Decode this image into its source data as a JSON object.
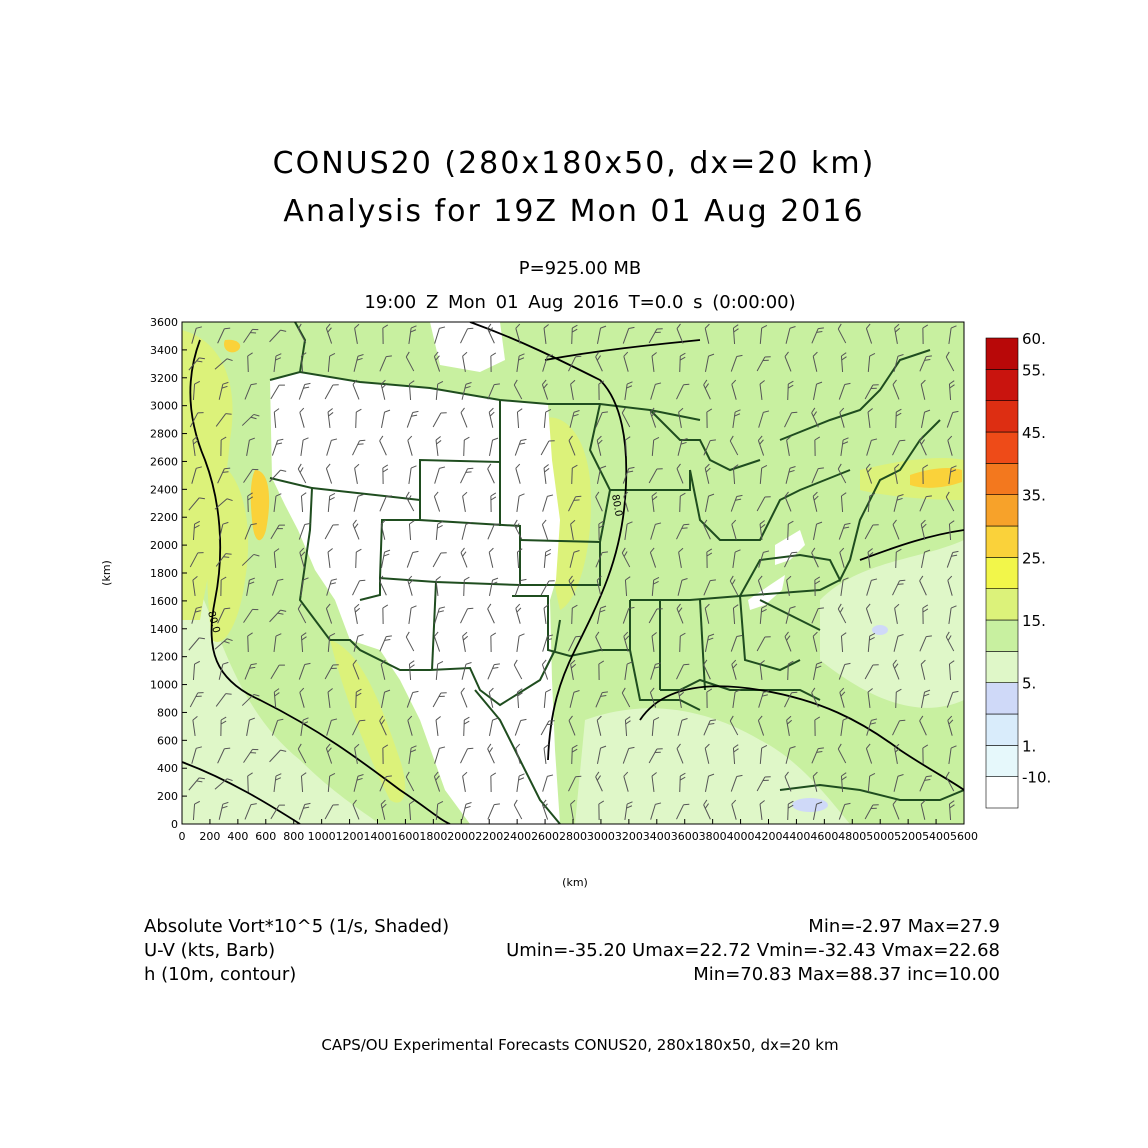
{
  "title": {
    "line1": "CONUS20 (280x180x50, dx=20 km)",
    "line2": "Analysis for 19Z Mon 01 Aug 2016"
  },
  "subtitle": {
    "level": "P=925.00 MB",
    "time": "19:00 Z Mon 01 Aug 2016   T=0.0 s (0:00:00)"
  },
  "axes": {
    "x_label": "(km)",
    "y_label": "(km)",
    "x_ticks": [
      "0",
      "200",
      "400",
      "600",
      "800",
      "1000",
      "1200",
      "1400",
      "1600",
      "1800",
      "2000",
      "2200",
      "2400",
      "2600",
      "2800",
      "3000",
      "3200",
      "3400",
      "3600",
      "3800",
      "4000",
      "4200",
      "4400",
      "4600",
      "4800",
      "5000",
      "5200",
      "5400",
      "5600"
    ],
    "y_ticks": [
      "0",
      "200",
      "400",
      "600",
      "800",
      "1000",
      "1200",
      "1400",
      "1600",
      "1800",
      "2000",
      "2200",
      "2400",
      "2600",
      "2800",
      "3000",
      "3200",
      "3400",
      "3600"
    ],
    "x_range_km": [
      0,
      5600
    ],
    "y_range_km": [
      0,
      3600
    ]
  },
  "colorbar": {
    "labels": [
      "60.",
      "55.",
      "45.",
      "35.",
      "25.",
      "15.",
      "5.",
      "1.",
      "-10."
    ],
    "colors": [
      "#ffffff",
      "#e6f8fb",
      "#d9ecfb",
      "#cfd9f8",
      "#dff7c8",
      "#c8f0a0",
      "#dcf27a",
      "#f2f64a",
      "#fad23a",
      "#f7a22a",
      "#f3781e",
      "#ee4b18",
      "#dd2e12",
      "#c9140e",
      "#b80808"
    ]
  },
  "contour_labels": [
    "80.0",
    "80.0"
  ],
  "legend": {
    "rows": [
      {
        "left": "Absolute Vort*10^5 (1/s, Shaded)",
        "right": "Min=-2.97 Max=27.9"
      },
      {
        "left": "U-V (kts, Barb)",
        "right": "Umin=-35.20 Umax=22.72 Vmin=-32.43 Vmax=22.68"
      },
      {
        "left": "h (10m, contour)",
        "right": "Min=70.83 Max=88.37 inc=10.00"
      }
    ]
  },
  "credit": "CAPS/OU Experimental Forecasts  CONUS20, 280x180x50, dx=20 km",
  "colors": {
    "field_base": "#c8f0a0",
    "field_light": "#dff7c8",
    "field_yellow": "#dcf27a",
    "field_orange": "#fad23a",
    "boundary": "#1f4d1f",
    "contour": "#000000",
    "barb": "#555555"
  }
}
